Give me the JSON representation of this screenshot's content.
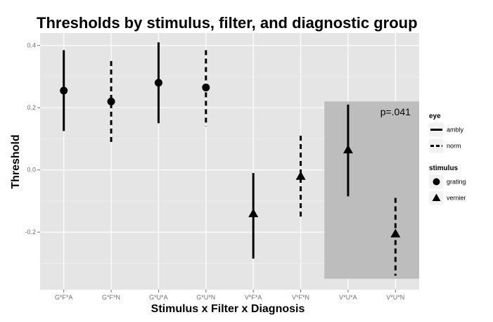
{
  "chart_data": {
    "type": "scatter",
    "title": "Thresholds by stimulus, filter, and diagnostic group",
    "xlabel": "Stimulus x Filter x Diagnosis",
    "ylabel": "Threshold",
    "categories": [
      "G*F*A",
      "G*F*N",
      "G*U*A",
      "G*U*N",
      "V*F*A",
      "V*F*N",
      "V*U*A",
      "V*U*N"
    ],
    "ylim": [
      -0.385,
      0.44
    ],
    "yticks": [
      -0.2,
      0.0,
      0.2,
      0.4
    ],
    "ytick_labels": [
      "-0.2",
      "0.0",
      "0.2",
      "0.4"
    ],
    "grid": true,
    "background": "#e5e5e5",
    "points": [
      {
        "x": "G*F*A",
        "y": 0.255,
        "ymin": 0.125,
        "ymax": 0.385,
        "eye": "ambly",
        "stimulus": "grating"
      },
      {
        "x": "G*F*N",
        "y": 0.22,
        "ymin": 0.085,
        "ymax": 0.35,
        "eye": "norm",
        "stimulus": "grating"
      },
      {
        "x": "G*U*A",
        "y": 0.28,
        "ymin": 0.15,
        "ymax": 0.41,
        "eye": "ambly",
        "stimulus": "grating"
      },
      {
        "x": "G*U*N",
        "y": 0.265,
        "ymin": 0.14,
        "ymax": 0.385,
        "eye": "norm",
        "stimulus": "grating"
      },
      {
        "x": "V*F*A",
        "y": -0.14,
        "ymin": -0.285,
        "ymax": -0.01,
        "eye": "ambly",
        "stimulus": "vernier"
      },
      {
        "x": "V*F*N",
        "y": -0.02,
        "ymin": -0.16,
        "ymax": 0.11,
        "eye": "norm",
        "stimulus": "vernier"
      },
      {
        "x": "V*U*A",
        "y": 0.065,
        "ymin": -0.085,
        "ymax": 0.21,
        "eye": "ambly",
        "stimulus": "vernier"
      },
      {
        "x": "V*U*N",
        "y": -0.205,
        "ymin": -0.34,
        "ymax": -0.09,
        "eye": "norm",
        "stimulus": "vernier"
      }
    ],
    "highlight_region": {
      "x_from": "V*U*A",
      "x_to": "V*U*N",
      "y_from": -0.35,
      "y_to": 0.22,
      "color": "#bdbdbd"
    },
    "annotations": [
      {
        "text": "p=.041",
        "x": "V*U*N",
        "y": 0.175
      }
    ],
    "legend": {
      "placement": "right",
      "groups": [
        {
          "title": "eye",
          "items": [
            {
              "label": "ambly",
              "line": "solid"
            },
            {
              "label": "norm",
              "line": "dashed"
            }
          ]
        },
        {
          "title": "stimulus",
          "items": [
            {
              "label": "grating",
              "shape": "circle"
            },
            {
              "label": "vernier",
              "shape": "triangle"
            }
          ]
        }
      ]
    }
  }
}
